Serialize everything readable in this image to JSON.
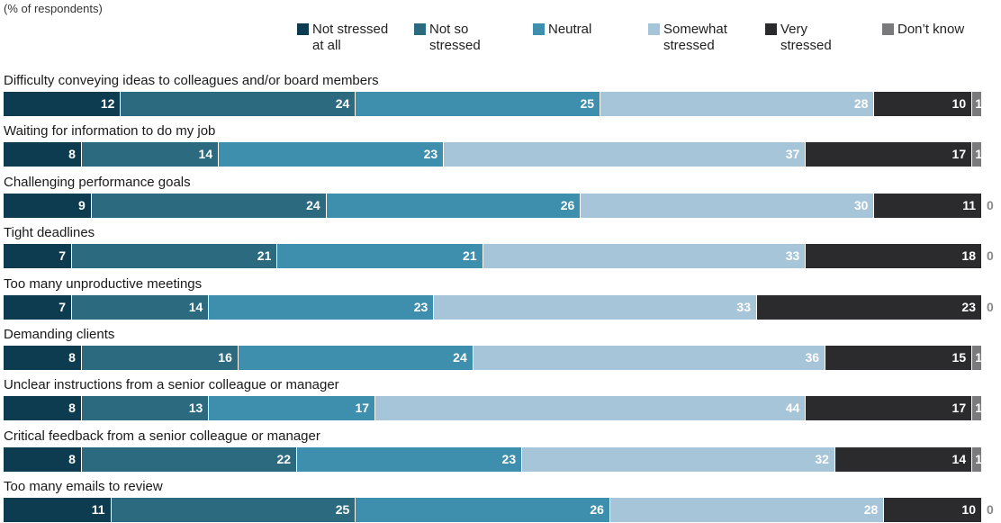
{
  "unit_note": "(% of respondents)",
  "chart_data": {
    "type": "bar",
    "orientation": "horizontal",
    "stacked": true,
    "grid": false,
    "legend_placement": "top",
    "xlim": [
      0,
      100
    ],
    "series": [
      {
        "name": "Not stressed at all",
        "legend_lines": [
          "Not stressed",
          "at all"
        ],
        "color": "#0d3b4f",
        "label_color": "#ffffff",
        "values": [
          12,
          8,
          9,
          7,
          7,
          8,
          8,
          8,
          11
        ]
      },
      {
        "name": "Not so stressed",
        "legend_lines": [
          "Not so",
          "stressed"
        ],
        "color": "#2c6a80",
        "label_color": "#ffffff",
        "values": [
          24,
          14,
          24,
          21,
          14,
          16,
          13,
          22,
          25
        ]
      },
      {
        "name": "Neutral",
        "legend_lines": [
          "Neutral"
        ],
        "color": "#3e8fad",
        "label_color": "#ffffff",
        "values": [
          25,
          23,
          26,
          21,
          23,
          24,
          17,
          23,
          26
        ]
      },
      {
        "name": "Somewhat stressed",
        "legend_lines": [
          "Somewhat",
          "stressed"
        ],
        "color": "#a6c5d8",
        "label_color": "#ffffff",
        "values": [
          28,
          37,
          30,
          33,
          33,
          36,
          44,
          32,
          28
        ]
      },
      {
        "name": "Very stressed",
        "legend_lines": [
          "Very",
          "stressed"
        ],
        "color": "#2b2b2e",
        "label_color": "#ffffff",
        "values": [
          10,
          17,
          11,
          18,
          23,
          15,
          17,
          14,
          10
        ]
      },
      {
        "name": "Don’t know",
        "legend_lines": [
          "Don’t know"
        ],
        "color": "#7a7a7c",
        "label_color": "#ffffff",
        "values": [
          1,
          1,
          0,
          0,
          0,
          1,
          1,
          1,
          0
        ]
      }
    ],
    "categories": [
      "Difficulty conveying ideas to colleagues and/or board members",
      "Waiting for information to do my job",
      "Challenging performance goals",
      "Tight deadlines",
      "Too many unproductive meetings",
      "Demanding clients",
      "Unclear instructions from a senior colleague or manager",
      "Critical feedback from a senior colleague or manager",
      "Too many emails to review"
    ]
  }
}
